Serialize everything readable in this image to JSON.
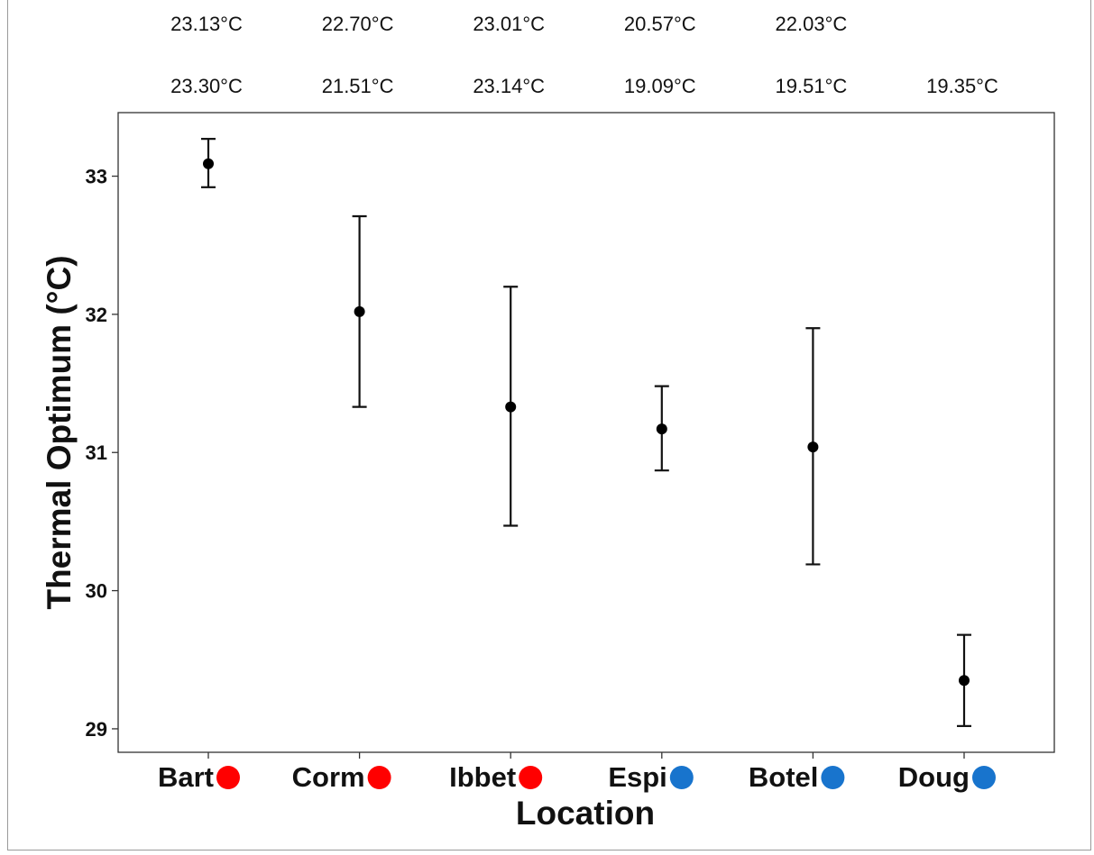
{
  "chart_data": {
    "type": "scatter",
    "xlabel": "Location",
    "ylabel": "Thermal Optimum (°C)",
    "ylim": [
      28.83,
      33.46
    ],
    "yticks": [
      29,
      30,
      31,
      32,
      33
    ],
    "grid": false,
    "legend": "none",
    "categories": [
      "Bart",
      "Corm",
      "Ibbet",
      "Espi",
      "Botel",
      "Doug"
    ],
    "category_marker_colors": [
      "#ff0000",
      "#ff0000",
      "#ff0000",
      "#1874cd",
      "#1874cd",
      "#1874cd"
    ],
    "values": [
      33.09,
      32.02,
      31.33,
      31.17,
      31.04,
      29.35
    ],
    "error_low": [
      32.92,
      31.33,
      30.47,
      30.87,
      30.19,
      29.02
    ],
    "error_high": [
      33.27,
      32.71,
      32.2,
      31.48,
      31.9,
      29.68
    ],
    "top_labels_row1": [
      "23.13°C",
      "22.70°C",
      "23.01°C",
      "20.57°C",
      "22.03°C",
      ""
    ],
    "top_labels_row2": [
      "23.30°C",
      "21.51°C",
      "23.14°C",
      "19.09°C",
      "19.51°C",
      "19.35°C"
    ]
  }
}
